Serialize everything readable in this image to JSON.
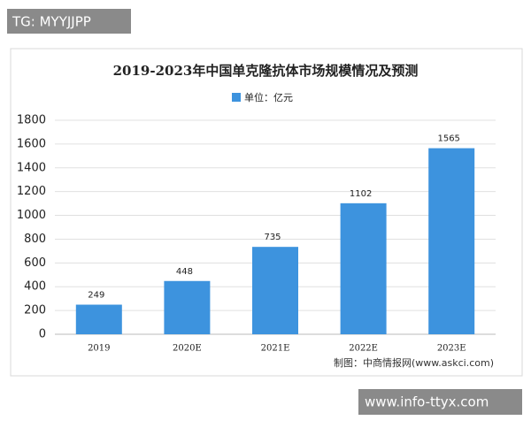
{
  "chart_data": {
    "type": "bar",
    "title": "2019-2023年中国单克隆抗体市场规模情况及预测",
    "categories": [
      "2019",
      "2020E",
      "2021E",
      "2022E",
      "2023E"
    ],
    "series": [
      {
        "name": "单位：亿元",
        "color": "#3d93de",
        "values": [
          249,
          448,
          735,
          1102,
          1565
        ]
      }
    ],
    "ylim": [
      0,
      1800
    ],
    "yticks": [
      0,
      200,
      400,
      600,
      800,
      1000,
      1200,
      1400,
      1600,
      1800
    ],
    "grid": true,
    "legend": "top",
    "source": "制图：中商情报网(www.askci.com)"
  },
  "watermark_top": "TG: MYYJJPP",
  "watermark_bottom": "www.info-ttyx.com"
}
